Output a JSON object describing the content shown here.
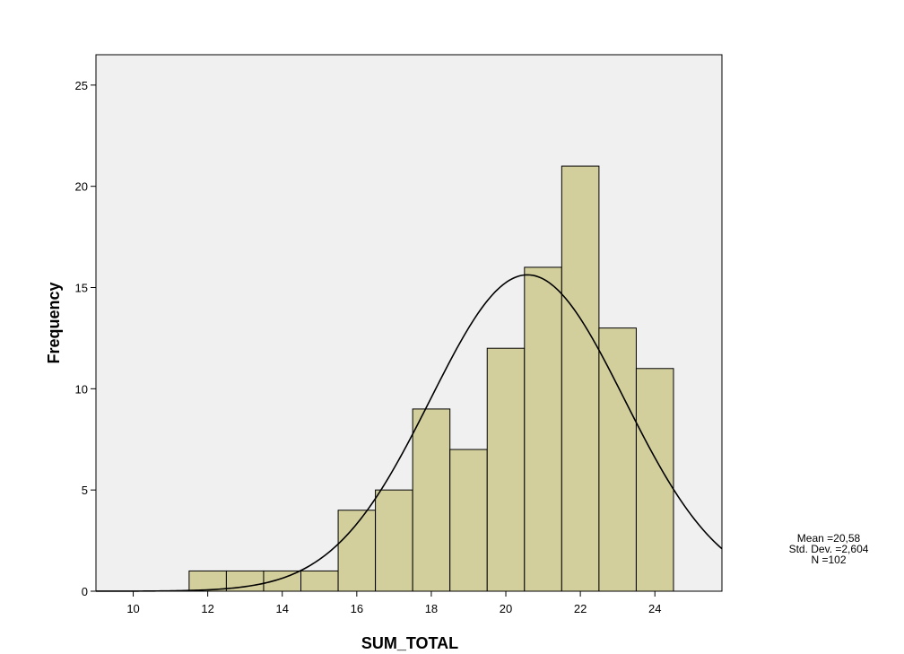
{
  "chart_data": {
    "type": "bar",
    "subtype": "histogram",
    "xlabel": "SUM_TOTAL",
    "ylabel": "Frequency",
    "xlim": [
      9,
      25.8
    ],
    "ylim": [
      0,
      26.5
    ],
    "x_ticks": [
      10,
      12,
      14,
      16,
      18,
      20,
      22,
      24
    ],
    "y_ticks": [
      0,
      5,
      10,
      15,
      20,
      25
    ],
    "bin_width": 1,
    "bins": [
      {
        "center": 12,
        "count": 1
      },
      {
        "center": 13,
        "count": 1
      },
      {
        "center": 14,
        "count": 1
      },
      {
        "center": 15,
        "count": 1
      },
      {
        "center": 16,
        "count": 4
      },
      {
        "center": 17,
        "count": 5
      },
      {
        "center": 18,
        "count": 9
      },
      {
        "center": 19,
        "count": 7
      },
      {
        "center": 20,
        "count": 12
      },
      {
        "center": 21,
        "count": 16
      },
      {
        "center": 22,
        "count": 21
      },
      {
        "center": 23,
        "count": 13
      },
      {
        "center": 24,
        "count": 11
      }
    ],
    "normal_curve": {
      "mean": 20.58,
      "std_dev": 2.604,
      "n": 102
    },
    "grid": false,
    "colors": {
      "bar_fill": "#d3cf9d",
      "bar_stroke": "#000000",
      "plot_background": "#f0f0f0",
      "curve": "#000000"
    }
  },
  "stats_box": {
    "mean_line": "Mean =20,58",
    "std_line": "Std. Dev. =2,604",
    "n_line": "N =102"
  }
}
